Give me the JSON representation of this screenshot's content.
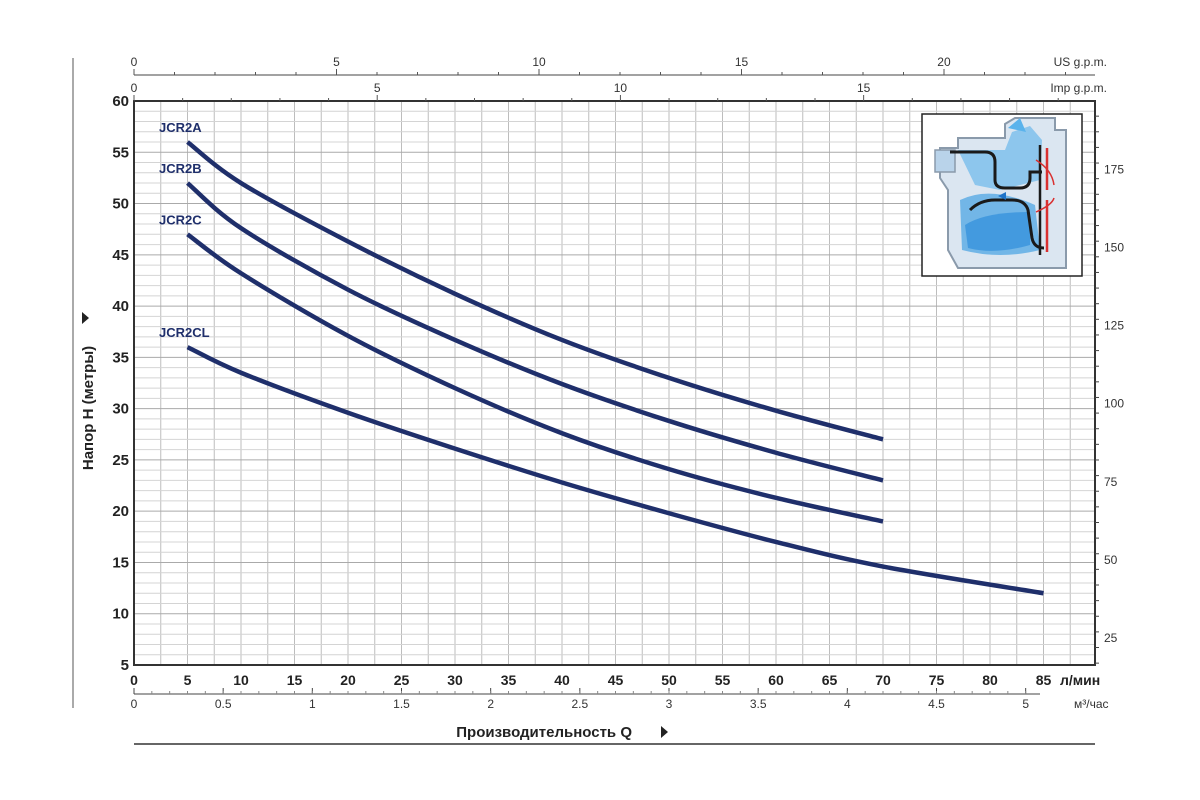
{
  "chart_data": {
    "type": "line",
    "title": "",
    "xlabel": "Производительность Q",
    "ylabel": "Напор H (метры)",
    "x_unit_label": "л/мин",
    "x_m3_unit_label": "м³/час",
    "us_gpm_label": "US g.p.m.",
    "imp_gpm_label": "Imp g.p.m.",
    "xlim": [
      0,
      90
    ],
    "ylim": [
      5,
      60
    ],
    "x_ticks": [
      0,
      5,
      10,
      15,
      20,
      25,
      30,
      35,
      40,
      45,
      50,
      55,
      60,
      65,
      70,
      75,
      80,
      85
    ],
    "y_ticks": [
      5,
      10,
      15,
      20,
      25,
      30,
      35,
      40,
      45,
      50,
      55,
      60
    ],
    "m3_ticks": [
      "0",
      "0.5",
      "1",
      "1.5",
      "2",
      "2.5",
      "3",
      "3.5",
      "4",
      "4.5",
      "5"
    ],
    "us_gpm_ticks": [
      "0",
      "5",
      "10",
      "15",
      "20"
    ],
    "imp_gpm_ticks": [
      "0",
      "5",
      "10",
      "15"
    ],
    "right_ticks": [
      "25",
      "50",
      "75",
      "100",
      "125",
      "150",
      "175"
    ],
    "grid": true,
    "legend": "inline-labels",
    "series": [
      {
        "name": "JCR2A",
        "x": [
          5,
          10,
          20,
          30,
          40,
          50,
          60,
          70
        ],
        "y": [
          56,
          52,
          46.3,
          41.2,
          36.7,
          33,
          29.8,
          27
        ]
      },
      {
        "name": "JCR2B",
        "x": [
          5,
          10,
          20,
          30,
          40,
          50,
          60,
          70
        ],
        "y": [
          52,
          47.6,
          41.6,
          36.7,
          32.4,
          28.8,
          25.7,
          23
        ]
      },
      {
        "name": "JCR2C",
        "x": [
          5,
          10,
          20,
          30,
          40,
          50,
          60,
          70
        ],
        "y": [
          47,
          43.2,
          37.1,
          32,
          27.6,
          24.1,
          21.3,
          19
        ]
      },
      {
        "name": "JCR2CL",
        "x": [
          5,
          10,
          20,
          30,
          40,
          50,
          60,
          70,
          85
        ],
        "y": [
          36,
          33.5,
          29.6,
          26.1,
          22.8,
          19.8,
          17,
          14.6,
          12
        ]
      }
    ]
  }
}
